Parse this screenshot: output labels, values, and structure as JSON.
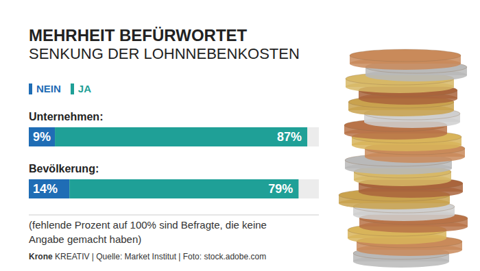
{
  "chart_data": {
    "type": "bar",
    "title": "MEHRHEIT BEFÜRWORTET",
    "subtitle": "SENKUNG DER LOHNNEBENKOSTEN",
    "orientation": "horizontal",
    "stacked": true,
    "categories": [
      "Unternehmen:",
      "Bevölkerung:"
    ],
    "series": [
      {
        "name": "NEIN",
        "color": "#1f6db5",
        "values": [
          9,
          14
        ],
        "value_labels": [
          "9%",
          "14%"
        ]
      },
      {
        "name": "JA",
        "color": "#1fa097",
        "values": [
          87,
          79
        ],
        "value_labels": [
          "87%",
          "79%"
        ]
      }
    ],
    "xlim": [
      0,
      100
    ],
    "data_labels": true,
    "tick_labels": false,
    "legend": "top left",
    "grid": false,
    "note": "(fehlende Prozent auf 100% sind Befragte, die keine Angabe gemacht haben)",
    "source": [
      "Krone",
      "KREATIV | Quelle: Market Institut | Foto: stock.adobe.com"
    ]
  }
}
